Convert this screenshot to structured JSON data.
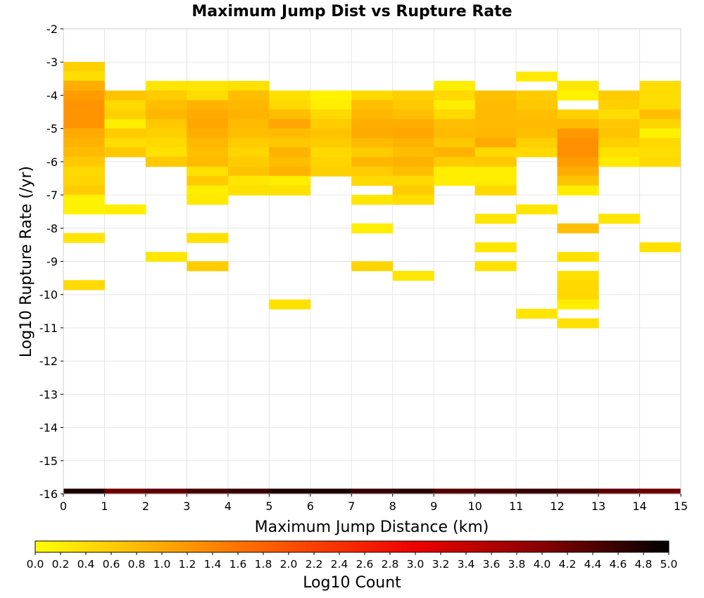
{
  "chart_data": {
    "type": "heatmap",
    "title": "Maximum Jump Dist vs Rupture Rate",
    "xlabel": "Maximum Jump Distance (km)",
    "ylabel": "Log10 Rupture Rate (/yr)",
    "xlim": [
      0,
      15
    ],
    "ylim": [
      -16,
      -2
    ],
    "x_ticks": [
      "0",
      "1",
      "2",
      "3",
      "4",
      "5",
      "6",
      "7",
      "8",
      "9",
      "10",
      "11",
      "12",
      "13",
      "14",
      "15"
    ],
    "y_ticks": [
      "-2",
      "-3",
      "-4",
      "-5",
      "-6",
      "-7",
      "-8",
      "-9",
      "-10",
      "-11",
      "-12",
      "-13",
      "-14",
      "-15",
      "-16"
    ],
    "grid": true,
    "bin_width_x": 1,
    "bin_height_y": 0.286,
    "colorbar": {
      "label": "Log10 Count",
      "min": 0.0,
      "max": 5.0,
      "ticks": [
        "0.0",
        "0.2",
        "0.4",
        "0.6",
        "0.8",
        "1.0",
        "1.2",
        "1.4",
        "1.6",
        "1.8",
        "2.0",
        "2.2",
        "2.4",
        "2.6",
        "2.8",
        "3.0",
        "3.2",
        "3.4",
        "3.6",
        "3.8",
        "4.0",
        "4.2",
        "4.4",
        "4.6",
        "4.8",
        "5.0"
      ],
      "colors": [
        "#ffff00",
        "#ffaa00",
        "#ff5000",
        "#ee0000",
        "#880000",
        "#000000"
      ],
      "placement": "bottom"
    },
    "columns": [
      {
        "x": 0,
        "y_values": [
          -3.14,
          -3.43,
          -3.71,
          -4.0,
          -4.29,
          -4.57,
          -4.86,
          -5.14,
          -5.43,
          -5.71,
          -6.0,
          -6.29,
          -6.57,
          -6.86,
          -7.14,
          -7.43,
          -8.29,
          -9.71,
          -16.0
        ],
        "counts": [
          0.55,
          0.4,
          0.95,
          1.15,
          1.25,
          1.25,
          1.25,
          1.0,
          0.9,
          0.8,
          0.65,
          0.45,
          0.5,
          0.6,
          0.15,
          0.15,
          0.3,
          0.45,
          4.8
        ]
      },
      {
        "x": 1,
        "y_values": [
          -4.0,
          -4.29,
          -4.57,
          -4.86,
          -5.14,
          -5.43,
          -5.71,
          -7.43,
          -16.0
        ],
        "counts": [
          0.7,
          0.45,
          0.55,
          0.2,
          0.6,
          0.4,
          0.65,
          0.2,
          4.2
        ]
      },
      {
        "x": 2,
        "y_values": [
          -3.71,
          -4.0,
          -4.29,
          -4.57,
          -4.86,
          -5.14,
          -5.43,
          -5.71,
          -6.0,
          -8.86,
          -16.0
        ],
        "counts": [
          0.3,
          0.6,
          0.75,
          0.85,
          0.65,
          0.55,
          0.45,
          0.35,
          0.65,
          0.3,
          4.3
        ]
      },
      {
        "x": 3,
        "y_values": [
          -3.71,
          -4.0,
          -4.29,
          -4.57,
          -4.86,
          -5.14,
          -5.43,
          -5.71,
          -6.0,
          -6.29,
          -6.57,
          -6.86,
          -7.14,
          -8.29,
          -9.14,
          -16.0
        ],
        "counts": [
          0.3,
          0.4,
          0.9,
          1.0,
          1.05,
          0.95,
          0.85,
          0.75,
          0.8,
          0.35,
          0.6,
          0.2,
          0.25,
          0.35,
          0.6,
          4.5
        ]
      },
      {
        "x": 4,
        "y_values": [
          -3.71,
          -4.0,
          -4.29,
          -4.57,
          -4.86,
          -5.14,
          -5.43,
          -5.71,
          -6.0,
          -6.29,
          -6.57,
          -6.86,
          -16.0
        ],
        "counts": [
          0.35,
          0.75,
          0.85,
          0.9,
          0.8,
          0.75,
          0.6,
          0.5,
          0.6,
          0.7,
          0.3,
          0.35,
          4.6
        ]
      },
      {
        "x": 5,
        "y_values": [
          -4.0,
          -4.29,
          -4.57,
          -4.86,
          -5.14,
          -5.43,
          -5.71,
          -6.0,
          -6.29,
          -6.57,
          -6.86,
          -10.29,
          -16.0
        ],
        "counts": [
          0.35,
          0.45,
          0.75,
          1.05,
          0.8,
          0.65,
          0.9,
          0.75,
          0.9,
          0.2,
          0.35,
          0.35,
          4.8
        ]
      },
      {
        "x": 6,
        "y_values": [
          -4.0,
          -4.29,
          -4.57,
          -4.86,
          -5.14,
          -5.43,
          -5.71,
          -6.0,
          -6.29,
          -16.0
        ],
        "counts": [
          0.15,
          0.2,
          0.45,
          0.6,
          0.7,
          0.6,
          0.45,
          0.5,
          0.55,
          4.8
        ]
      },
      {
        "x": 7,
        "y_values": [
          -4.0,
          -4.29,
          -4.57,
          -4.86,
          -5.14,
          -5.43,
          -5.71,
          -6.0,
          -6.29,
          -6.57,
          -7.14,
          -8.0,
          -9.14,
          -16.0
        ],
        "counts": [
          0.45,
          0.75,
          0.85,
          0.95,
          1.0,
          0.8,
          0.6,
          0.85,
          0.6,
          0.45,
          0.3,
          0.2,
          0.5,
          4.6
        ]
      },
      {
        "x": 8,
        "y_values": [
          -4.0,
          -4.29,
          -4.57,
          -4.86,
          -5.14,
          -5.43,
          -5.71,
          -6.0,
          -6.29,
          -6.57,
          -6.86,
          -7.14,
          -9.43,
          -16.0
        ],
        "counts": [
          0.55,
          0.65,
          0.75,
          0.95,
          1.05,
          0.9,
          0.75,
          0.9,
          0.75,
          0.45,
          0.6,
          0.4,
          0.3,
          4.7
        ]
      },
      {
        "x": 9,
        "y_values": [
          -3.71,
          -4.0,
          -4.29,
          -4.57,
          -4.86,
          -5.14,
          -5.43,
          -5.71,
          -6.0,
          -6.29,
          -6.57,
          -16.0
        ],
        "counts": [
          0.2,
          0.45,
          0.2,
          0.45,
          0.75,
          0.8,
          0.65,
          0.9,
          0.6,
          0.2,
          0.2,
          4.4
        ]
      },
      {
        "x": 10,
        "y_values": [
          -4.0,
          -4.29,
          -4.57,
          -4.86,
          -5.14,
          -5.43,
          -5.71,
          -6.0,
          -6.29,
          -6.57,
          -6.86,
          -7.71,
          -8.57,
          -9.14,
          -16.0
        ],
        "counts": [
          0.75,
          0.8,
          0.8,
          0.8,
          0.85,
          1.0,
          0.45,
          0.65,
          0.2,
          0.2,
          0.45,
          0.3,
          0.3,
          0.35,
          4.5
        ]
      },
      {
        "x": 11,
        "y_values": [
          -3.43,
          -4.0,
          -4.29,
          -4.57,
          -4.86,
          -5.14,
          -5.43,
          -5.71,
          -7.43,
          -10.57,
          -16.0
        ],
        "counts": [
          0.25,
          0.6,
          0.65,
          0.75,
          0.8,
          0.75,
          0.55,
          0.45,
          0.3,
          0.3,
          4.6
        ]
      },
      {
        "x": 12,
        "y_values": [
          -3.71,
          -4.0,
          -4.57,
          -4.86,
          -5.14,
          -5.43,
          -5.71,
          -6.0,
          -6.29,
          -6.57,
          -6.86,
          -8.0,
          -8.86,
          -9.43,
          -9.71,
          -10.0,
          -10.29,
          -10.86,
          -16.0
        ],
        "counts": [
          0.3,
          0.15,
          0.55,
          0.8,
          1.2,
          1.3,
          1.3,
          1.15,
          0.95,
          0.7,
          0.2,
          0.75,
          0.35,
          0.35,
          0.45,
          0.45,
          0.2,
          0.35,
          4.5
        ]
      },
      {
        "x": 13,
        "y_values": [
          -4.0,
          -4.29,
          -4.57,
          -4.86,
          -5.14,
          -5.43,
          -5.71,
          -6.0,
          -7.71,
          -16.0
        ],
        "counts": [
          0.6,
          0.55,
          0.4,
          0.65,
          0.7,
          0.55,
          0.35,
          0.25,
          0.3,
          4.3
        ]
      },
      {
        "x": 14,
        "y_values": [
          -3.71,
          -4.0,
          -4.29,
          -4.57,
          -4.86,
          -5.14,
          -5.43,
          -5.71,
          -6.0,
          -8.57,
          -16.0
        ],
        "counts": [
          0.4,
          0.4,
          0.4,
          0.75,
          0.5,
          0.15,
          0.45,
          0.4,
          0.45,
          0.35,
          4.2
        ]
      }
    ]
  }
}
